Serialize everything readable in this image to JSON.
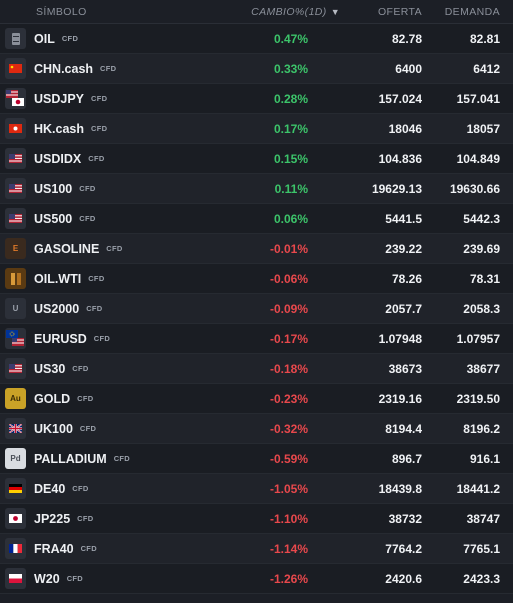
{
  "header": {
    "symbol": "SÍMBOLO",
    "change": "CAMBIO%(1D)",
    "sort_icon": "▼",
    "bid": "OFERTA",
    "ask": "DEMANDA"
  },
  "colors": {
    "positive": "#3cc46a",
    "negative": "#e8484c"
  },
  "rows": [
    {
      "symbol": "OIL",
      "tag": "CFD",
      "change": "0.47%",
      "bid": "82.78",
      "ask": "82.81",
      "dir": "pos",
      "icon": "oil-barrel-icon"
    },
    {
      "symbol": "CHN.cash",
      "tag": "CFD",
      "change": "0.33%",
      "bid": "6400",
      "ask": "6412",
      "dir": "pos",
      "icon": "china-flag-icon"
    },
    {
      "symbol": "USDJPY",
      "tag": "CFD",
      "change": "0.28%",
      "bid": "157.024",
      "ask": "157.041",
      "dir": "pos",
      "icon": "usd-jpy-flags-icon"
    },
    {
      "symbol": "HK.cash",
      "tag": "CFD",
      "change": "0.17%",
      "bid": "18046",
      "ask": "18057",
      "dir": "pos",
      "icon": "hong-kong-flag-icon"
    },
    {
      "symbol": "USDIDX",
      "tag": "CFD",
      "change": "0.15%",
      "bid": "104.836",
      "ask": "104.849",
      "dir": "pos",
      "icon": "us-flag-icon"
    },
    {
      "symbol": "US100",
      "tag": "CFD",
      "change": "0.11%",
      "bid": "19629.13",
      "ask": "19630.66",
      "dir": "pos",
      "icon": "us-flag-icon"
    },
    {
      "symbol": "US500",
      "tag": "CFD",
      "change": "0.06%",
      "bid": "5441.5",
      "ask": "5442.3",
      "dir": "pos",
      "icon": "us-flag-icon"
    },
    {
      "symbol": "GASOLINE",
      "tag": "CFD",
      "change": "-0.01%",
      "bid": "239.22",
      "ask": "239.69",
      "dir": "neg",
      "icon": "gasoline-icon"
    },
    {
      "symbol": "OIL.WTI",
      "tag": "CFD",
      "change": "-0.06%",
      "bid": "78.26",
      "ask": "78.31",
      "dir": "neg",
      "icon": "oil-wti-icon"
    },
    {
      "symbol": "US2000",
      "tag": "CFD",
      "change": "-0.09%",
      "bid": "2057.7",
      "ask": "2058.3",
      "dir": "neg",
      "icon": "us2000-icon"
    },
    {
      "symbol": "EURUSD",
      "tag": "CFD",
      "change": "-0.17%",
      "bid": "1.07948",
      "ask": "1.07957",
      "dir": "neg",
      "icon": "eur-usd-flags-icon"
    },
    {
      "symbol": "US30",
      "tag": "CFD",
      "change": "-0.18%",
      "bid": "38673",
      "ask": "38677",
      "dir": "neg",
      "icon": "us-flag-icon"
    },
    {
      "symbol": "GOLD",
      "tag": "CFD",
      "change": "-0.23%",
      "bid": "2319.16",
      "ask": "2319.50",
      "dir": "neg",
      "icon": "gold-icon"
    },
    {
      "symbol": "UK100",
      "tag": "CFD",
      "change": "-0.32%",
      "bid": "8194.4",
      "ask": "8196.2",
      "dir": "neg",
      "icon": "uk-flag-icon"
    },
    {
      "symbol": "PALLADIUM",
      "tag": "CFD",
      "change": "-0.59%",
      "bid": "896.7",
      "ask": "916.1",
      "dir": "neg",
      "icon": "palladium-icon"
    },
    {
      "symbol": "DE40",
      "tag": "CFD",
      "change": "-1.05%",
      "bid": "18439.8",
      "ask": "18441.2",
      "dir": "neg",
      "icon": "germany-flag-icon"
    },
    {
      "symbol": "JP225",
      "tag": "CFD",
      "change": "-1.10%",
      "bid": "38732",
      "ask": "38747",
      "dir": "neg",
      "icon": "japan-flag-icon"
    },
    {
      "symbol": "FRA40",
      "tag": "CFD",
      "change": "-1.14%",
      "bid": "7764.2",
      "ask": "7765.1",
      "dir": "neg",
      "icon": "france-flag-icon"
    },
    {
      "symbol": "W20",
      "tag": "CFD",
      "change": "-1.26%",
      "bid": "2420.6",
      "ask": "2423.3",
      "dir": "neg",
      "icon": "poland-flag-icon"
    }
  ],
  "icon_text": {
    "us2000": "U",
    "gold": "Au",
    "palladium": "Pd",
    "gasoline": "E"
  }
}
